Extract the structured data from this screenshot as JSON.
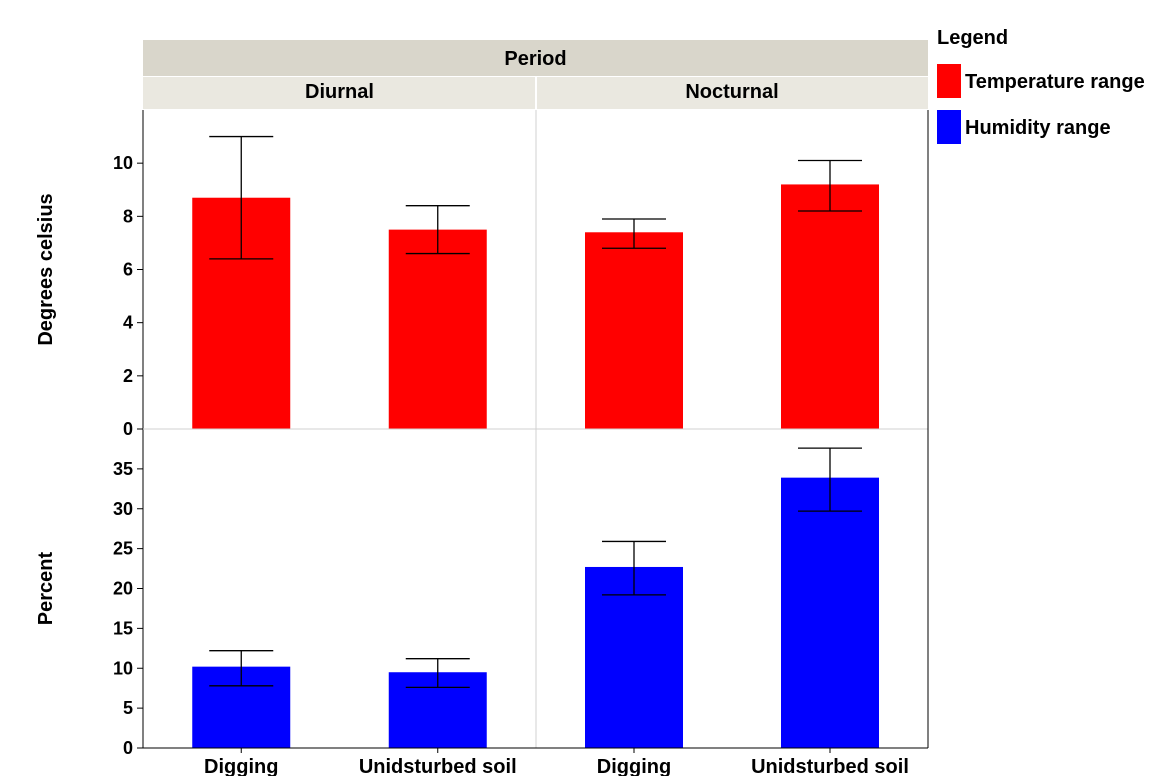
{
  "chart_data": {
    "type": "bar",
    "facet_title": "Period",
    "columns": [
      "Diurnal",
      "Nocturnal"
    ],
    "categories": [
      "Digging",
      "Unidsturbed soil"
    ],
    "legend_title": "Legend",
    "legend_placement": "right",
    "panels": [
      {
        "name": "Temperature range",
        "ylabel": "Degrees celsius",
        "color": "#ff0000",
        "ylim": [
          0,
          12
        ],
        "yticks": [
          0,
          2,
          4,
          6,
          8,
          10
        ],
        "values": {
          "Diurnal": [
            8.7,
            7.5
          ],
          "Nocturnal": [
            7.4,
            9.2
          ]
        },
        "error_low": {
          "Diurnal": [
            6.4,
            6.6
          ],
          "Nocturnal": [
            6.8,
            8.2
          ]
        },
        "error_high": {
          "Diurnal": [
            11.0,
            8.4
          ],
          "Nocturnal": [
            7.9,
            10.1
          ]
        }
      },
      {
        "name": "Humidity range",
        "ylabel": "Percent",
        "color": "#0000ff",
        "ylim": [
          0,
          40
        ],
        "yticks": [
          0,
          5,
          10,
          15,
          20,
          25,
          30,
          35
        ],
        "values": {
          "Diurnal": [
            10.2,
            9.5
          ],
          "Nocturnal": [
            22.7,
            33.9
          ]
        },
        "error_low": {
          "Diurnal": [
            7.8,
            7.6
          ],
          "Nocturnal": [
            19.2,
            29.7
          ]
        },
        "error_high": {
          "Diurnal": [
            12.2,
            11.2
          ],
          "Nocturnal": [
            25.9,
            37.6
          ]
        }
      }
    ]
  }
}
